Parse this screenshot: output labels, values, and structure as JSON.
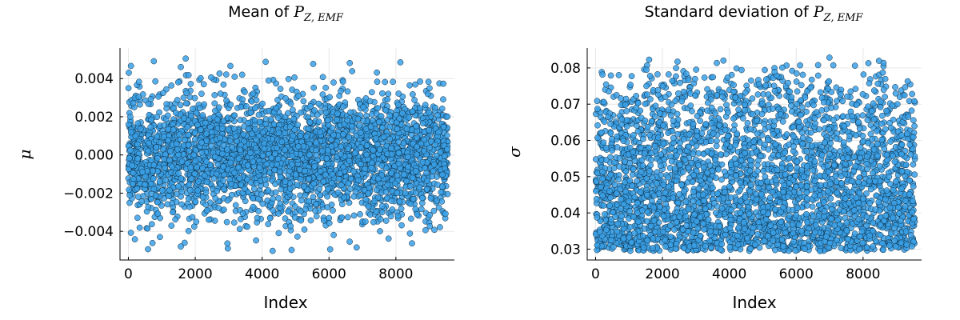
{
  "chart_data": [
    {
      "type": "scatter",
      "title_prefix": "Mean of ",
      "title_math": "P",
      "title_sub": "Z, EMF",
      "xlabel": "Index",
      "ylabel": "μ",
      "xlim": [
        -250,
        9750
      ],
      "ylim": [
        -0.0055,
        0.0056
      ],
      "xticks": [
        0,
        2000,
        4000,
        6000,
        8000
      ],
      "xtick_labels": [
        "0",
        "2000",
        "4000",
        "6000",
        "8000"
      ],
      "yticks": [
        -0.004,
        -0.002,
        0.0,
        0.002,
        0.004
      ],
      "ytick_labels": [
        "−0.004",
        "−0.002",
        "0.000",
        "0.002",
        "0.004"
      ],
      "grid": true,
      "x_range": [
        0,
        9550
      ],
      "y_range": [
        -0.0052,
        0.0052
      ],
      "distribution": "approximately normal around 0.0, most values within ±0.003",
      "color": "#3aa0e6",
      "edge_color": "#0c2a3e"
    },
    {
      "type": "scatter",
      "title_prefix": "Standard deviation of ",
      "title_math": "P",
      "title_sub": "Z, EMF",
      "xlabel": "Index",
      "ylabel": "σ",
      "xlim": [
        -250,
        9750
      ],
      "ylim": [
        0.027,
        0.0855
      ],
      "xticks": [
        0,
        2000,
        4000,
        6000,
        8000
      ],
      "xtick_labels": [
        "0",
        "2000",
        "4000",
        "6000",
        "8000"
      ],
      "yticks": [
        0.03,
        0.04,
        0.05,
        0.06,
        0.07,
        0.08
      ],
      "ytick_labels": [
        "0.03",
        "0.04",
        "0.05",
        "0.06",
        "0.07",
        "0.08"
      ],
      "grid": true,
      "x_range": [
        0,
        9550
      ],
      "y_range": [
        0.0295,
        0.0833
      ],
      "distribution": "spread over 0.0295–0.0833, densest near the top (0.07–0.083)",
      "color": "#3aa0e6",
      "edge_color": "#0c2a3e"
    }
  ]
}
